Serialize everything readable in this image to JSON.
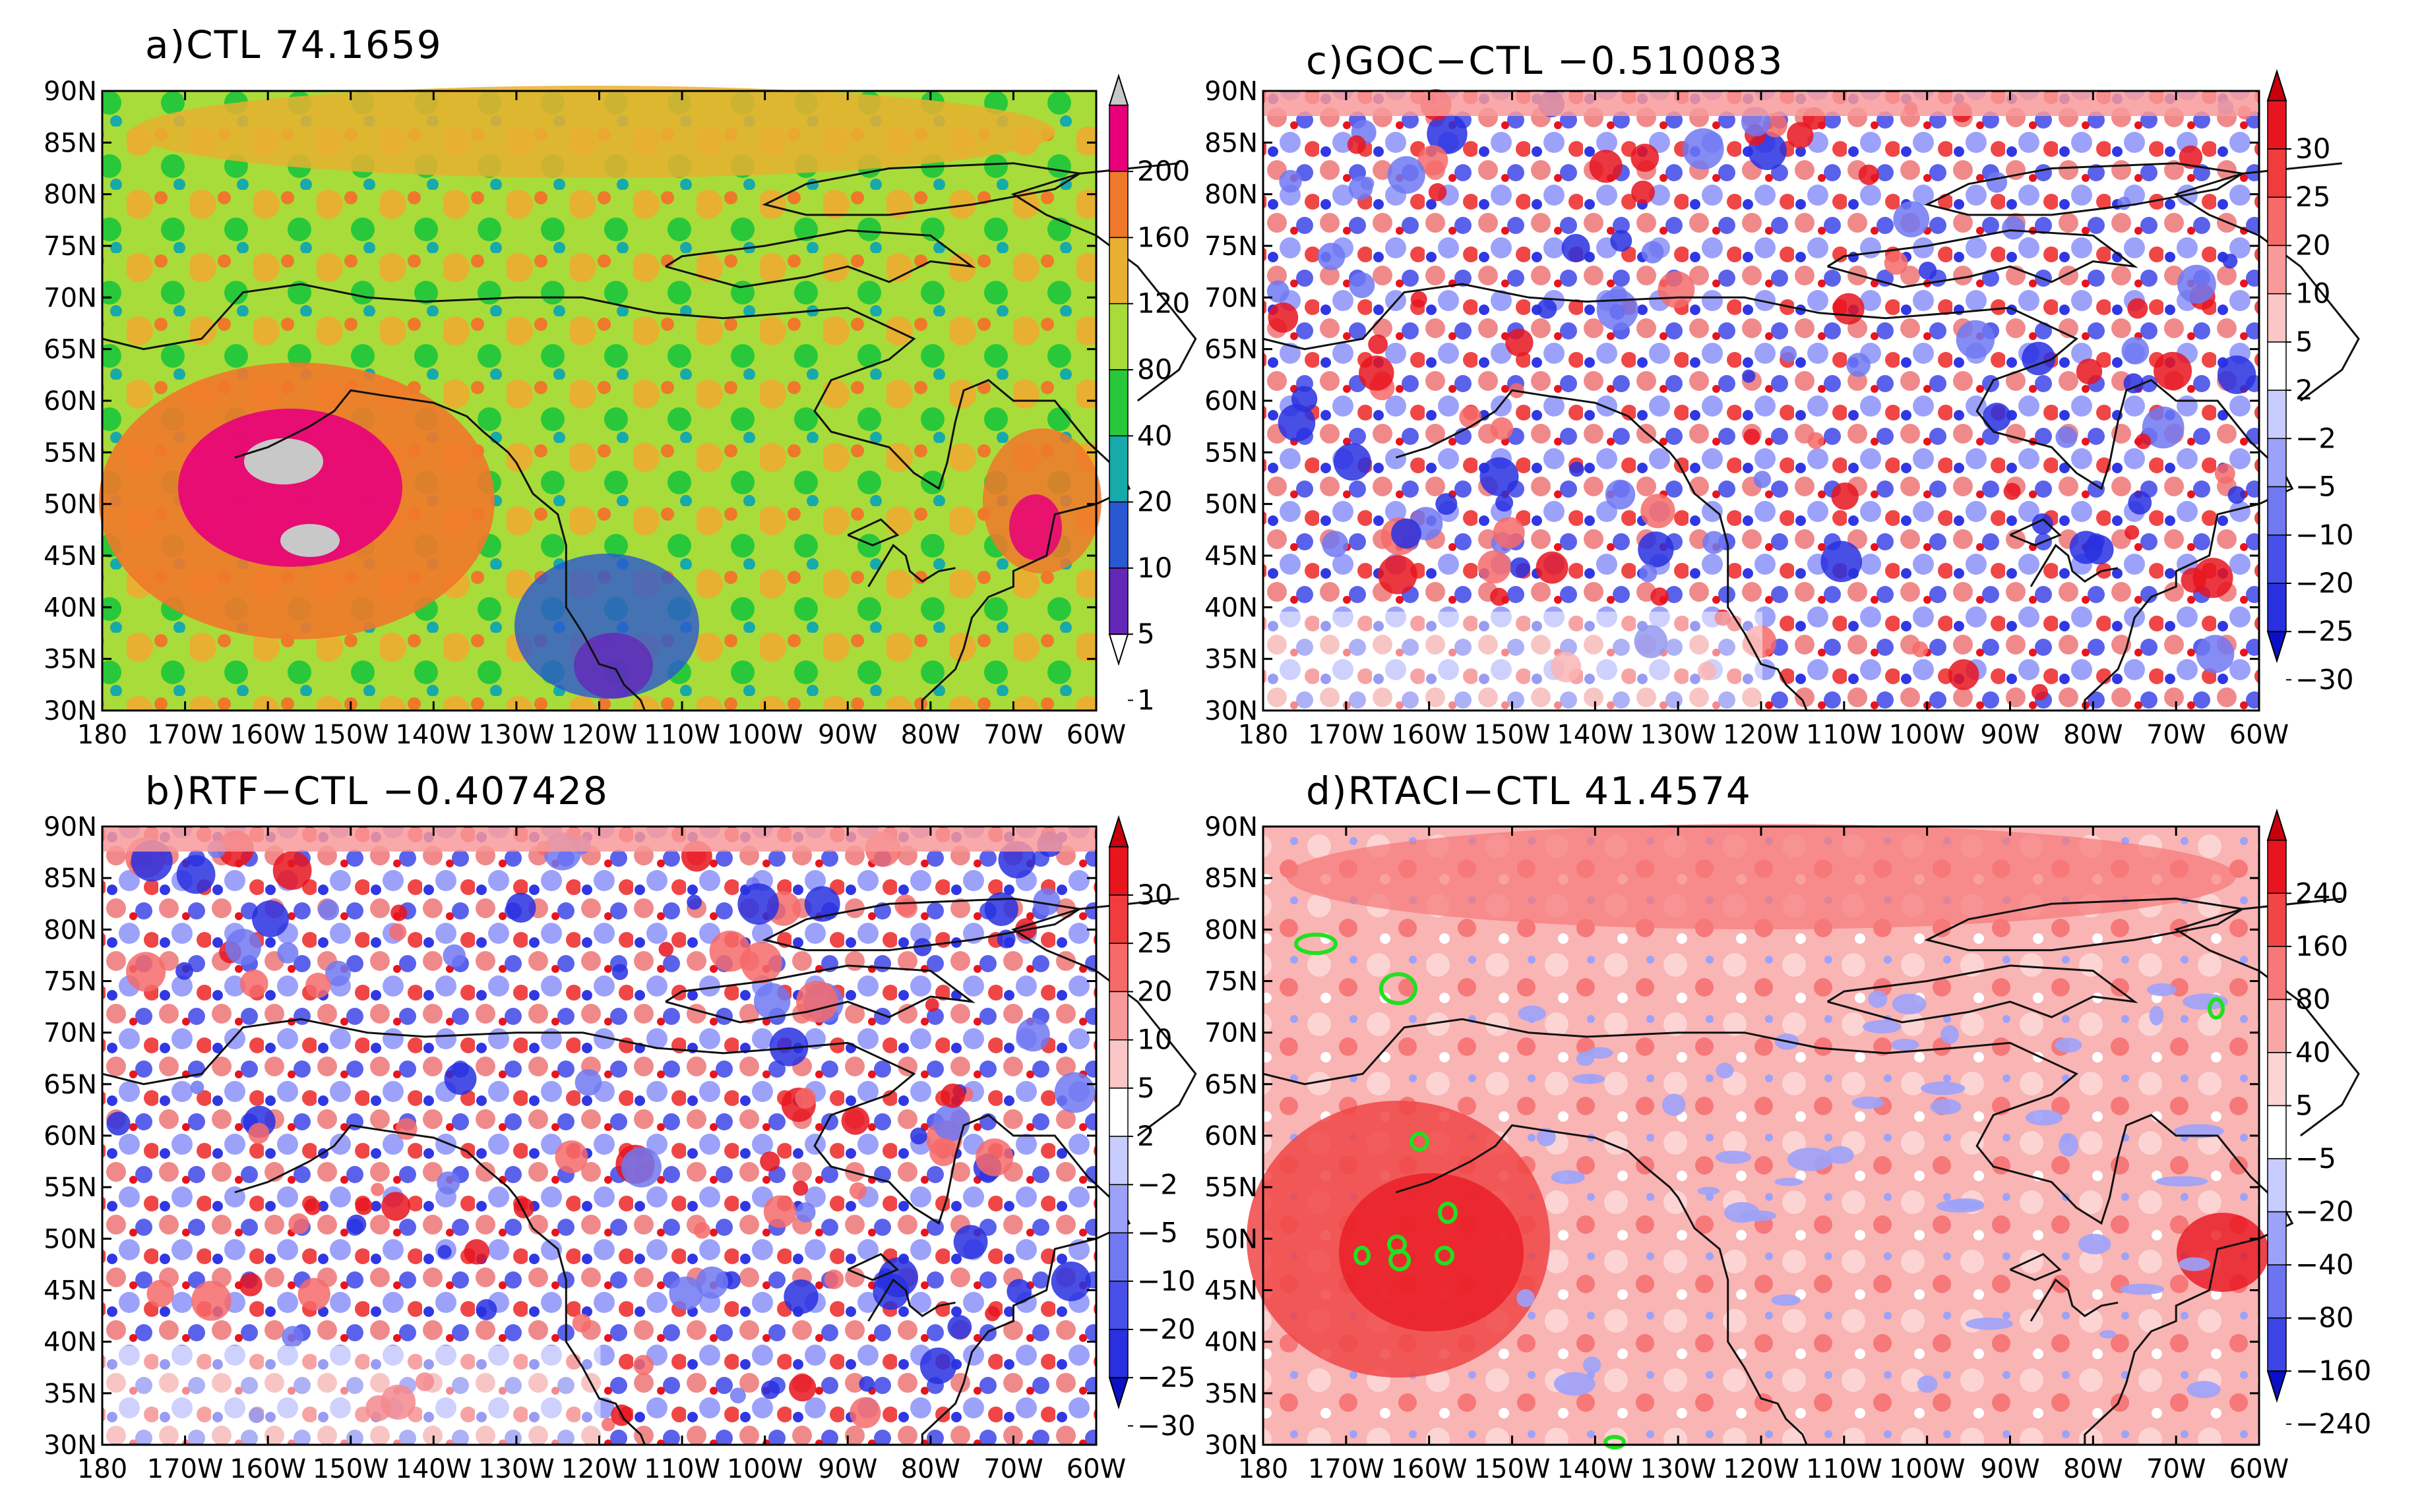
{
  "figure": {
    "panels": [
      {
        "id": "a",
        "title": "a)CTL  74.1659",
        "type": "diverging",
        "colorbar": {
          "labels": [
            "200",
            "160",
            "120",
            "80",
            "40",
            "20",
            "10",
            "5",
            "1"
          ],
          "colors": [
            "#c8c8c8",
            "#e8007a",
            "#f0782a",
            "#e8b030",
            "#a8dc3a",
            "#28c83a",
            "#16aaaa",
            "#2a58d2",
            "#6428b8",
            "#ffffff"
          ]
        }
      },
      {
        "id": "b",
        "title": "b)RTF−CTL  −0.407428",
        "type": "diverging",
        "colorbar": {
          "labels": [
            "30",
            "25",
            "20",
            "10",
            "5",
            "2",
            "−2",
            "−5",
            "−10",
            "−20",
            "−25",
            "−30"
          ],
          "colors": [
            "#c8000e",
            "#e8141e",
            "#f03c3c",
            "#f66a6a",
            "#f89a9a",
            "#fbc6c6",
            "#ffffff",
            "#c8ccff",
            "#9ca2fa",
            "#7078f2",
            "#4850ea",
            "#2830e0",
            "#0a10c8"
          ]
        }
      },
      {
        "id": "c",
        "title": "c)GOC−CTL  −0.510083",
        "type": "diverging",
        "colorbar": {
          "labels": [
            "30",
            "25",
            "20",
            "10",
            "5",
            "2",
            "−2",
            "−5",
            "−10",
            "−20",
            "−25",
            "−30"
          ],
          "colors": [
            "#c8000e",
            "#e8141e",
            "#f03c3c",
            "#f66a6a",
            "#f89a9a",
            "#fbc6c6",
            "#ffffff",
            "#c8ccff",
            "#9ca2fa",
            "#7078f2",
            "#4850ea",
            "#2830e0",
            "#0a10c8"
          ]
        }
      },
      {
        "id": "d",
        "title": "d)RTACI−CTL  41.4574",
        "type": "diverging",
        "colorbar": {
          "labels": [
            "240",
            "160",
            "80",
            "40",
            "5",
            "−5",
            "−20",
            "−40",
            "−80",
            "−160",
            "−240"
          ],
          "colors": [
            "#c8000e",
            "#e8141e",
            "#f04646",
            "#f67878",
            "#f9a6a6",
            "#fcd4d4",
            "#ffffff",
            "#c8ccff",
            "#9ca2fa",
            "#6c74f2",
            "#3c44e6",
            "#0a10c8"
          ]
        }
      }
    ],
    "x_ticks": [
      "180",
      "170W",
      "160W",
      "150W",
      "140W",
      "130W",
      "120W",
      "110W",
      "100W",
      "90W",
      "80W",
      "70W",
      "60W"
    ],
    "y_ticks": [
      "30N",
      "35N",
      "40N",
      "45N",
      "50N",
      "55N",
      "60N",
      "65N",
      "70N",
      "75N",
      "80N",
      "85N",
      "90N"
    ]
  },
  "chart_data": [
    {
      "type": "heatmap",
      "title": "a)CTL  74.1659",
      "xlim": [
        -180,
        -60
      ],
      "ylim": [
        30,
        90
      ],
      "colorbar_levels": [
        1,
        5,
        10,
        20,
        40,
        80,
        120,
        160,
        200
      ],
      "area_mean": 74.1659
    },
    {
      "type": "heatmap",
      "title": "b)RTF−CTL  −0.407428",
      "xlim": [
        -180,
        -60
      ],
      "ylim": [
        30,
        90
      ],
      "colorbar_levels": [
        -30,
        -25,
        -20,
        -10,
        -5,
        -2,
        2,
        5,
        10,
        20,
        25,
        30
      ],
      "area_mean": -0.407428
    },
    {
      "type": "heatmap",
      "title": "c)GOC−CTL  −0.510083",
      "xlim": [
        -180,
        -60
      ],
      "ylim": [
        30,
        90
      ],
      "colorbar_levels": [
        -30,
        -25,
        -20,
        -10,
        -5,
        -2,
        2,
        5,
        10,
        20,
        25,
        30
      ],
      "area_mean": -0.510083
    },
    {
      "type": "heatmap",
      "title": "d)RTACI−CTL  41.4574",
      "xlim": [
        -180,
        -60
      ],
      "ylim": [
        30,
        90
      ],
      "colorbar_levels": [
        -240,
        -160,
        -80,
        -40,
        -20,
        -5,
        5,
        40,
        80,
        160,
        240
      ],
      "area_mean": 41.4574
    }
  ]
}
